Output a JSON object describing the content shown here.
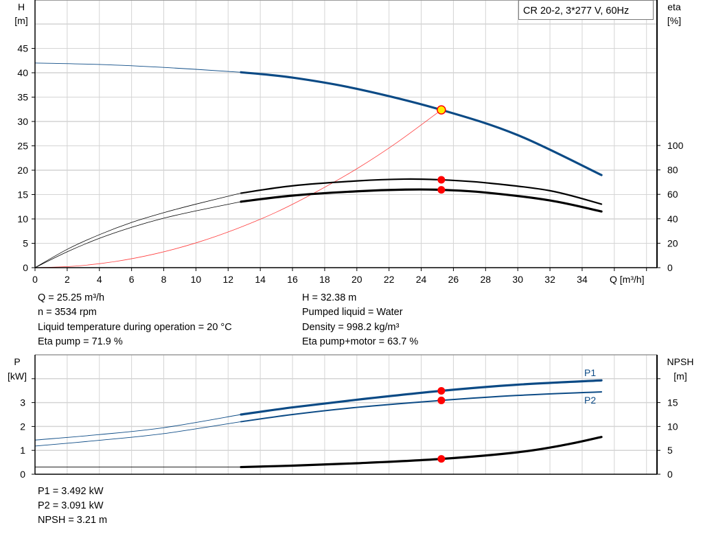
{
  "title": "CR 20-2, 3*277 V, 60Hz",
  "colors": {
    "head": "#0b4a85",
    "power": "#0b4a85",
    "efficiency": "#000000",
    "npsh": "#000000",
    "system": "#ff3b3b",
    "marker": "#ff0000",
    "marker_fill_head": "#ffee00",
    "grid": "#d4d4d4"
  },
  "chart_data": [
    {
      "type": "line",
      "xlabel": "Q [m³/h]",
      "ylabel_left": "H",
      "ylabel_left_unit": "[m]",
      "ylabel_right": "eta",
      "ylabel_right_unit": "[%]",
      "xlim": [
        0,
        38
      ],
      "ylim_left": [
        0,
        50
      ],
      "ylim_right": [
        0,
        100
      ],
      "x_ticks": [
        0,
        2,
        4,
        6,
        8,
        10,
        12,
        14,
        16,
        18,
        20,
        22,
        24,
        26,
        28,
        30,
        32,
        34
      ],
      "y_left_ticks": [
        0,
        5,
        10,
        15,
        20,
        25,
        30,
        35,
        40,
        45
      ],
      "y_right_ticks": [
        0,
        20,
        40,
        60,
        80,
        100
      ],
      "grid": true,
      "operating_point_q": 25.25,
      "thick_from_q": 12.8,
      "series": [
        {
          "key": "head",
          "axis": "left",
          "points": [
            [
              0,
              42
            ],
            [
              4,
              41.7
            ],
            [
              8,
              41.1
            ],
            [
              12.8,
              40.1
            ],
            [
              16,
              39
            ],
            [
              20,
              36.7
            ],
            [
              25.25,
              32.38
            ],
            [
              30,
              27.2
            ],
            [
              35.2,
              19
            ]
          ]
        },
        {
          "key": "eta_pump",
          "axis": "right",
          "points": [
            [
              0,
              0
            ],
            [
              2,
              15
            ],
            [
              4,
              27
            ],
            [
              6,
              37
            ],
            [
              8,
              45
            ],
            [
              10,
              52
            ],
            [
              12.8,
              61
            ],
            [
              16,
              67
            ],
            [
              20,
              71
            ],
            [
              23,
              72.5
            ],
            [
              25.25,
              71.9
            ],
            [
              28,
              69.5
            ],
            [
              32,
              63
            ],
            [
              35.2,
              52
            ]
          ]
        },
        {
          "key": "eta_pump_motor",
          "axis": "right",
          "points": [
            [
              0,
              0
            ],
            [
              2,
              13
            ],
            [
              4,
              24
            ],
            [
              6,
              33
            ],
            [
              8,
              40.5
            ],
            [
              10,
              46.5
            ],
            [
              12.8,
              54
            ],
            [
              16,
              59
            ],
            [
              20,
              62.5
            ],
            [
              23,
              63.9
            ],
            [
              25.25,
              63.7
            ],
            [
              28,
              61.5
            ],
            [
              32,
              55
            ],
            [
              35.2,
              46
            ]
          ]
        },
        {
          "key": "system",
          "axis": "left",
          "points": [
            [
              0,
              0
            ],
            [
              2.5,
              0.32
            ],
            [
              5,
              1.27
            ],
            [
              7.5,
              2.86
            ],
            [
              10,
              5.08
            ],
            [
              12.5,
              7.94
            ],
            [
              15,
              11.4
            ],
            [
              17.5,
              15.6
            ],
            [
              20,
              20.3
            ],
            [
              22.5,
              25.7
            ],
            [
              25.25,
              32.38
            ]
          ]
        }
      ]
    },
    {
      "type": "line",
      "ylabel_left": "P",
      "ylabel_left_unit": "[kW]",
      "ylabel_right": "NPSH",
      "ylabel_right_unit": "[m]",
      "xlim": [
        0,
        38
      ],
      "ylim_left": [
        0,
        5
      ],
      "ylim_right": [
        0,
        25
      ],
      "y_left_ticks": [
        0,
        1,
        2,
        3
      ],
      "y_right_ticks": [
        0,
        5,
        10,
        15
      ],
      "grid": true,
      "series": [
        {
          "key": "P1",
          "name": "P1",
          "axis": "left",
          "points": [
            [
              0,
              1.43
            ],
            [
              4,
              1.66
            ],
            [
              8,
              1.95
            ],
            [
              12.8,
              2.5
            ],
            [
              16,
              2.8
            ],
            [
              20,
              3.12
            ],
            [
              25.25,
              3.492
            ],
            [
              30,
              3.75
            ],
            [
              35.2,
              3.93
            ]
          ]
        },
        {
          "key": "P2",
          "name": "P2",
          "axis": "left",
          "points": [
            [
              0,
              1.18
            ],
            [
              4,
              1.42
            ],
            [
              8,
              1.7
            ],
            [
              12.8,
              2.2
            ],
            [
              16,
              2.5
            ],
            [
              20,
              2.8
            ],
            [
              25.25,
              3.091
            ],
            [
              30,
              3.3
            ],
            [
              35.2,
              3.45
            ]
          ]
        },
        {
          "key": "NPSH",
          "axis": "right",
          "points": [
            [
              0,
              1.5
            ],
            [
              12.8,
              1.5
            ],
            [
              16,
              1.8
            ],
            [
              20,
              2.3
            ],
            [
              25.25,
              3.21
            ],
            [
              30,
              4.6
            ],
            [
              33,
              6.2
            ],
            [
              35.2,
              7.8
            ]
          ]
        }
      ]
    }
  ],
  "info_top": {
    "col1": [
      "Q = 25.25 m³/h",
      "n = 3534 rpm",
      "Liquid temperature during operation = 20 °C",
      "Eta pump = 71.9 %"
    ],
    "col2": [
      "H = 32.38 m",
      "Pumped liquid = Water",
      "Density = 998.2 kg/m³",
      "Eta pump+motor = 63.7 %"
    ]
  },
  "info_bottom": [
    "P1 = 3.492 kW",
    "P2 = 3.091 kW",
    "NPSH = 3.21 m"
  ]
}
